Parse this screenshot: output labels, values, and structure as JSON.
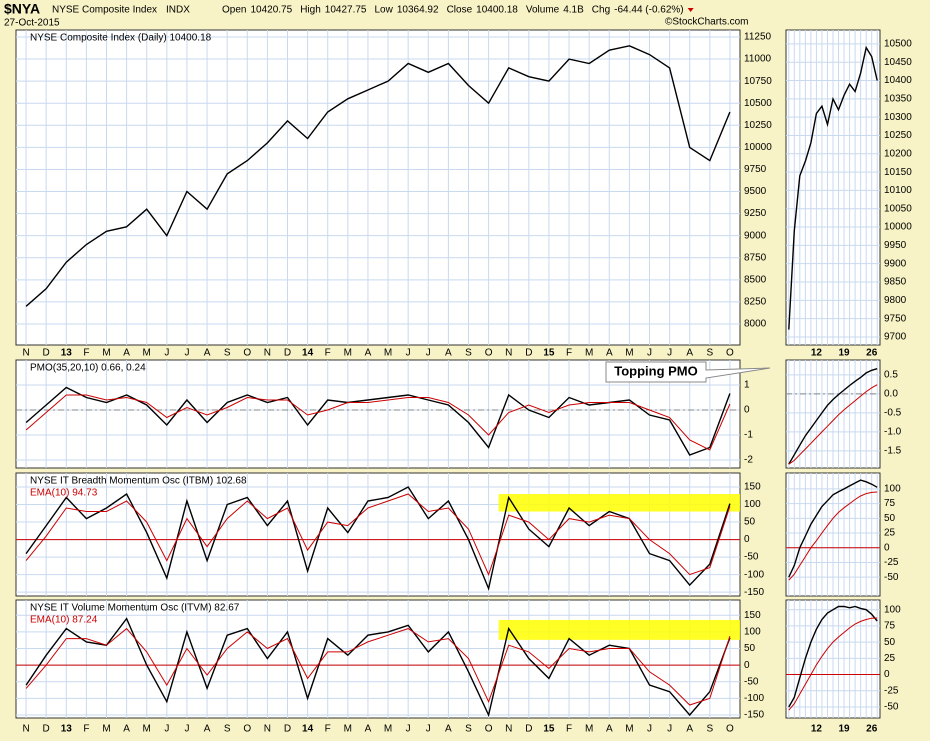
{
  "header": {
    "symbol": "$NYA",
    "name": "NYSE Composite Index",
    "exchange": "INDX",
    "date": "27-Oct-2015",
    "quote": [
      [
        "Open",
        "10420.75"
      ],
      [
        "High",
        "10427.75"
      ],
      [
        "Low",
        "10364.92"
      ],
      [
        "Close",
        "10400.18"
      ],
      [
        "Volume",
        "4.1B"
      ]
    ],
    "change_label": "Chg",
    "change": "-64.44 (-0.62%)",
    "credit": "©StockCharts.com"
  },
  "annotation": "Topping PMO",
  "chart_data": [
    {
      "type": "line",
      "categories": [
        "N",
        "D",
        "13",
        "F",
        "M",
        "A",
        "M",
        "J",
        "J",
        "A",
        "S",
        "O",
        "N",
        "D",
        "14",
        "F",
        "M",
        "A",
        "M",
        "J",
        "J",
        "A",
        "S",
        "O",
        "N",
        "D",
        "15",
        "F",
        "M",
        "A",
        "M",
        "J",
        "J",
        "A",
        "S",
        "O"
      ],
      "series": [
        {
          "name": "NYSE Composite Index (Daily) 10400.18",
          "color": "#000000",
          "values": [
            8200,
            8400,
            8700,
            8900,
            9050,
            9100,
            9300,
            9000,
            9500,
            9300,
            9700,
            9850,
            10050,
            10300,
            10100,
            10400,
            10550,
            10650,
            10750,
            10950,
            10850,
            10950,
            10700,
            10500,
            10900,
            10800,
            10750,
            11000,
            10950,
            11100,
            11150,
            11050,
            10900,
            10000,
            9850,
            10400.18
          ]
        }
      ],
      "ylim": [
        7762,
        11329
      ],
      "yticks": [
        8000,
        8250,
        8500,
        8750,
        9000,
        9250,
        9500,
        9750,
        10000,
        10250,
        10500,
        10750,
        11000,
        11250
      ],
      "grid": true
    },
    {
      "type": "line",
      "series": [
        {
          "name": "PMO(35,20,10) 0.66, 0.24",
          "color": "#000000",
          "values": [
            -0.5,
            0.2,
            0.9,
            0.5,
            0.3,
            0.6,
            0.2,
            -0.6,
            0.4,
            -0.5,
            0.3,
            0.6,
            0.3,
            0.5,
            -0.6,
            0.4,
            0.3,
            0.4,
            0.5,
            0.6,
            0.4,
            0.2,
            -0.5,
            -1.5,
            0.6,
            0.0,
            -0.3,
            0.5,
            0.2,
            0.3,
            0.4,
            -0.2,
            -0.4,
            -1.8,
            -1.5,
            0.66
          ]
        },
        {
          "color": "#cc0000",
          "values": [
            -0.8,
            -0.1,
            0.6,
            0.6,
            0.4,
            0.5,
            0.3,
            -0.3,
            0.1,
            -0.2,
            0.1,
            0.5,
            0.4,
            0.4,
            -0.2,
            0.0,
            0.3,
            0.3,
            0.4,
            0.5,
            0.5,
            0.3,
            -0.2,
            -1.0,
            -0.1,
            0.2,
            -0.1,
            0.2,
            0.3,
            0.3,
            0.3,
            0.0,
            -0.3,
            -1.2,
            -1.6,
            0.24
          ]
        }
      ],
      "ylim": [
        -2.32,
        2
      ],
      "yticks": [
        1,
        0,
        -1,
        -2
      ],
      "grid": true,
      "zero_line": {
        "value": 0,
        "color": "#888888",
        "dashed": true
      }
    },
    {
      "type": "line",
      "series": [
        {
          "name": "NYSE IT Breadth Momentum Osc (ITBM) 102.68",
          "color": "#000000",
          "values": [
            -40,
            40,
            120,
            60,
            90,
            130,
            20,
            -110,
            110,
            -60,
            100,
            120,
            40,
            110,
            -90,
            90,
            20,
            110,
            120,
            150,
            60,
            110,
            0,
            -140,
            120,
            30,
            -20,
            90,
            40,
            80,
            60,
            -40,
            -60,
            -130,
            -70,
            102.68
          ]
        },
        {
          "name": "EMA(10) 94.73",
          "color": "#cc0000",
          "values": [
            -60,
            10,
            90,
            80,
            80,
            110,
            50,
            -60,
            60,
            -20,
            60,
            110,
            60,
            90,
            -30,
            50,
            40,
            90,
            110,
            130,
            80,
            90,
            30,
            -100,
            70,
            50,
            0,
            60,
            50,
            70,
            60,
            0,
            -40,
            -100,
            -80,
            94.73
          ]
        }
      ],
      "ylim": [
        -161,
        190
      ],
      "yticks": [
        -150,
        -100,
        -50,
        0,
        50,
        100,
        150
      ],
      "grid": true,
      "zero_line": {
        "value": 0,
        "color": "#cc0000",
        "dashed": false
      },
      "highlight": {
        "x": [
          23.5,
          35.5
        ],
        "y": [
          80,
          130
        ],
        "color": "#ffff00"
      }
    },
    {
      "type": "line",
      "categories": [
        "N",
        "D",
        "13",
        "F",
        "M",
        "A",
        "M",
        "J",
        "J",
        "A",
        "S",
        "O",
        "N",
        "D",
        "14",
        "F",
        "M",
        "A",
        "M",
        "J",
        "J",
        "A",
        "S",
        "O",
        "N",
        "D",
        "15",
        "F",
        "M",
        "A",
        "M",
        "J",
        "J",
        "A",
        "S",
        "O"
      ],
      "series": [
        {
          "name": "NYSE IT Volume Momentum Osc (ITVM) 82.67",
          "color": "#000000",
          "values": [
            -60,
            30,
            110,
            70,
            60,
            140,
            0,
            -110,
            100,
            -70,
            90,
            110,
            20,
            100,
            -100,
            80,
            30,
            90,
            100,
            120,
            40,
            100,
            -20,
            -150,
            110,
            20,
            -40,
            80,
            30,
            60,
            50,
            -60,
            -80,
            -150,
            -80,
            82.67
          ]
        },
        {
          "name": "EMA(10) 87.24",
          "color": "#cc0000",
          "values": [
            -70,
            0,
            80,
            80,
            60,
            110,
            40,
            -60,
            50,
            -30,
            50,
            100,
            50,
            80,
            -40,
            40,
            40,
            70,
            90,
            110,
            70,
            80,
            20,
            -110,
            60,
            40,
            -10,
            50,
            40,
            50,
            50,
            -20,
            -60,
            -120,
            -100,
            87.24
          ]
        }
      ],
      "ylim": [
        -159,
        196
      ],
      "yticks": [
        -150,
        -100,
        -50,
        0,
        50,
        100,
        150
      ],
      "grid": true,
      "zero_line": {
        "value": 0,
        "color": "#cc0000",
        "dashed": false
      },
      "highlight": {
        "x": [
          23.5,
          35.5
        ],
        "y": [
          76,
          136
        ],
        "color": "#ffff00"
      }
    },
    {
      "type": "line",
      "categories": [
        null,
        null,
        null,
        null,
        null,
        "12",
        null,
        null,
        null,
        null,
        "19",
        null,
        null,
        null,
        null,
        "26",
        null
      ],
      "series": [
        {
          "color": "#000000",
          "values": [
            9720,
            9990,
            10140,
            10180,
            10230,
            10310,
            10330,
            10280,
            10350,
            10320,
            10360,
            10390,
            10370,
            10420,
            10490,
            10465,
            10400.18
          ]
        }
      ],
      "ylim": [
        9678,
        10538
      ],
      "yticks": [
        9700,
        9750,
        9800,
        9850,
        9900,
        9950,
        10000,
        10050,
        10100,
        10150,
        10200,
        10250,
        10300,
        10350,
        10400,
        10450,
        10500
      ],
      "grid": true
    },
    {
      "type": "line",
      "series": [
        {
          "color": "#000000",
          "values": [
            -1.85,
            -1.6,
            -1.35,
            -1.1,
            -0.9,
            -0.7,
            -0.5,
            -0.3,
            -0.15,
            -0.02,
            0.1,
            0.22,
            0.33,
            0.43,
            0.55,
            0.62,
            0.66
          ]
        },
        {
          "color": "#cc0000",
          "values": [
            -1.85,
            -1.75,
            -1.6,
            -1.45,
            -1.3,
            -1.15,
            -1.0,
            -0.85,
            -0.7,
            -0.55,
            -0.42,
            -0.3,
            -0.18,
            -0.06,
            0.06,
            0.16,
            0.24
          ]
        }
      ],
      "ylim": [
        -1.95,
        0.89
      ],
      "yticks": [
        0.5,
        {
          "value": 0,
          "label": "0.0"
        },
        -0.5,
        {
          "value": -1,
          "label": "-1.0"
        },
        -1.5
      ],
      "grid": true,
      "zero_line": {
        "value": 0,
        "color": "#888888",
        "dashed": true
      }
    },
    {
      "type": "line",
      "series": [
        {
          "color": "#000000",
          "values": [
            -50,
            -30,
            0,
            20,
            40,
            55,
            70,
            80,
            90,
            95,
            100,
            105,
            110,
            115,
            112,
            108,
            102.68
          ]
        },
        {
          "color": "#cc0000",
          "values": [
            -55,
            -45,
            -30,
            -15,
            0,
            12,
            25,
            38,
            50,
            60,
            68,
            75,
            82,
            88,
            92,
            94,
            94.73
          ]
        }
      ],
      "ylim": [
        -82,
        127
      ],
      "yticks": [
        -50,
        -25,
        0,
        25,
        50,
        75,
        100
      ],
      "grid": true,
      "zero_line": {
        "value": 0,
        "color": "#cc0000",
        "dashed": false
      }
    },
    {
      "type": "line",
      "categories": [
        null,
        null,
        null,
        null,
        null,
        "12",
        null,
        null,
        null,
        null,
        "19",
        null,
        null,
        null,
        null,
        "26",
        null
      ],
      "series": [
        {
          "color": "#000000",
          "values": [
            -50,
            -35,
            -5,
            25,
            50,
            70,
            85,
            95,
            100,
            105,
            105,
            103,
            105,
            102,
            100,
            93,
            82.67
          ]
        },
        {
          "color": "#cc0000",
          "values": [
            -55,
            -45,
            -30,
            -15,
            0,
            15,
            28,
            40,
            50,
            58,
            65,
            72,
            78,
            82,
            85,
            87,
            87.24
          ]
        }
      ],
      "ylim": [
        -67,
        115
      ],
      "yticks": [
        -50,
        -25,
        0,
        25,
        50,
        75,
        100
      ],
      "grid": true,
      "zero_line": {
        "value": 0,
        "color": "#cc0000",
        "dashed": false
      }
    }
  ]
}
